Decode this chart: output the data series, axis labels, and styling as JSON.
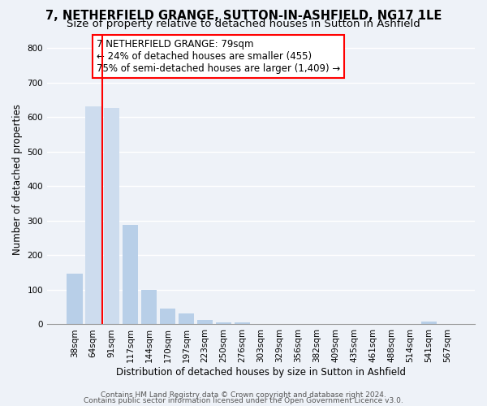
{
  "title": "7, NETHERFIELD GRANGE, SUTTON-IN-ASHFIELD, NG17 1LE",
  "subtitle": "Size of property relative to detached houses in Sutton in Ashfield",
  "xlabel": "Distribution of detached houses by size in Sutton in Ashfield",
  "ylabel": "Number of detached properties",
  "bins": [
    "38sqm",
    "64sqm",
    "91sqm",
    "117sqm",
    "144sqm",
    "170sqm",
    "197sqm",
    "223sqm",
    "250sqm",
    "276sqm",
    "303sqm",
    "329sqm",
    "356sqm",
    "382sqm",
    "409sqm",
    "435sqm",
    "461sqm",
    "488sqm",
    "514sqm",
    "541sqm",
    "567sqm"
  ],
  "values": [
    148,
    632,
    628,
    288,
    100,
    45,
    32,
    13,
    5,
    5,
    0,
    0,
    0,
    0,
    0,
    0,
    0,
    0,
    0,
    7,
    0
  ],
  "bar_color_normal": "#b8cfe8",
  "bar_color_highlight": "#cddcee",
  "highlight_bars": [
    1,
    2
  ],
  "red_line_x": 1.5,
  "annotation_text_line1": "7 NETHERFIELD GRANGE: 79sqm",
  "annotation_text_line2": "← 24% of detached houses are smaller (455)",
  "annotation_text_line3": "75% of semi-detached houses are larger (1,409) →",
  "ylim": [
    0,
    840
  ],
  "yticks": [
    0,
    100,
    200,
    300,
    400,
    500,
    600,
    700,
    800
  ],
  "footer1": "Contains HM Land Registry data © Crown copyright and database right 2024.",
  "footer2": "Contains public sector information licensed under the Open Government Licence v3.0.",
  "bg_color": "#eef2f8",
  "plot_bg": "#eef2f8",
  "grid_color": "#ffffff",
  "title_fontsize": 10.5,
  "subtitle_fontsize": 9.5,
  "xlabel_fontsize": 8.5,
  "ylabel_fontsize": 8.5,
  "tick_fontsize": 7.5,
  "footer_fontsize": 6.5,
  "ann_fontsize": 8.5
}
